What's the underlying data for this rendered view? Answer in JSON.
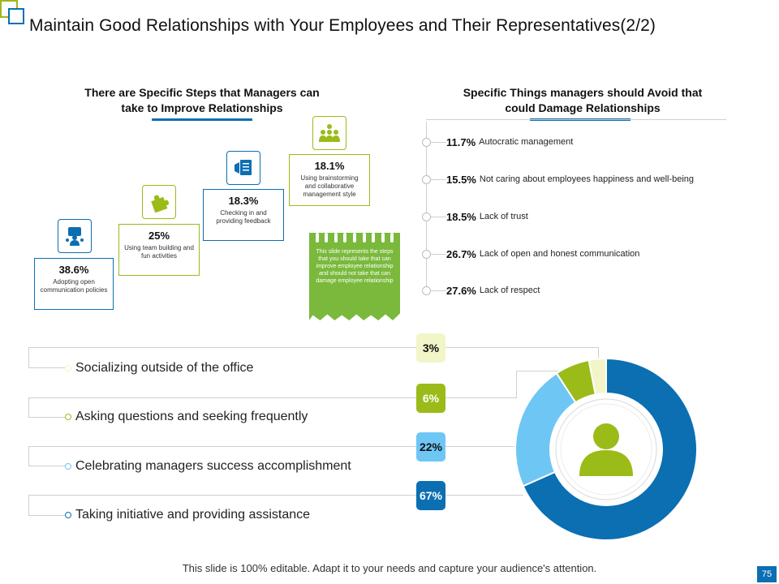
{
  "title": "Maintain Good Relationships with Your Employees and Their Representatives(2/2)",
  "left_section": {
    "heading_line1": "There are Specific Steps that Managers can",
    "heading_line2": "take to Improve Relationships",
    "steps": [
      {
        "pct": "38.6%",
        "text": "Adopting open communication policies",
        "icon": "presenter-icon",
        "color": "#0b6fb2"
      },
      {
        "pct": "25%",
        "text": "Using team building and fun activities",
        "icon": "puzzle-icon",
        "color": "#9bbb19"
      },
      {
        "pct": "18.3%",
        "text": "Checking in and providing feedback",
        "icon": "feedback-icon",
        "color": "#0b6fb2"
      },
      {
        "pct": "18.1%",
        "text": "Using brainstorming and collaborative management style",
        "icon": "team-idea-icon",
        "color": "#9bbb19"
      }
    ],
    "note": "This slide represents the steps that you should take that can improve employee relationship and should not take that can damage employee relationship"
  },
  "right_section": {
    "heading_line1": "Specific Things managers should Avoid that",
    "heading_line2": "could Damage Relationships",
    "items": [
      {
        "pct": "11.7%",
        "text": "Autocratic management"
      },
      {
        "pct": "15.5%",
        "text": "Not caring about employees happiness and well-being"
      },
      {
        "pct": "18.5%",
        "text": "Lack of trust"
      },
      {
        "pct": "26.7%",
        "text": "Lack of open and honest communication"
      },
      {
        "pct": "27.6%",
        "text": "Lack of respect"
      }
    ]
  },
  "bottom_list": [
    {
      "text": "Socializing outside of the office",
      "pct": "3%",
      "color": "#f2f5c8",
      "text_color": "#111"
    },
    {
      "text": "Asking questions and seeking frequently",
      "pct": "6%",
      "color": "#9bbb19",
      "text_color": "#ffffff"
    },
    {
      "text": "Celebrating managers success accomplishment",
      "pct": "22%",
      "color": "#6ec6f5",
      "text_color": "#111"
    },
    {
      "text": "Taking initiative and providing assistance",
      "pct": "67%",
      "color": "#0b6fb2",
      "text_color": "#ffffff"
    }
  ],
  "chart_data": {
    "type": "pie",
    "categories": [
      "Socializing outside of the office",
      "Asking questions and seeking frequently",
      "Celebrating managers success accomplishment",
      "Taking initiative and providing assistance"
    ],
    "values": [
      3,
      6,
      22,
      67
    ],
    "colors": [
      "#f2f5c8",
      "#9bbb19",
      "#6ec6f5",
      "#0b6fb2"
    ],
    "center_icon": "user-icon"
  },
  "footer": "This slide is 100% editable. Adapt it to your needs and capture your audience's attention.",
  "page_number": "75"
}
